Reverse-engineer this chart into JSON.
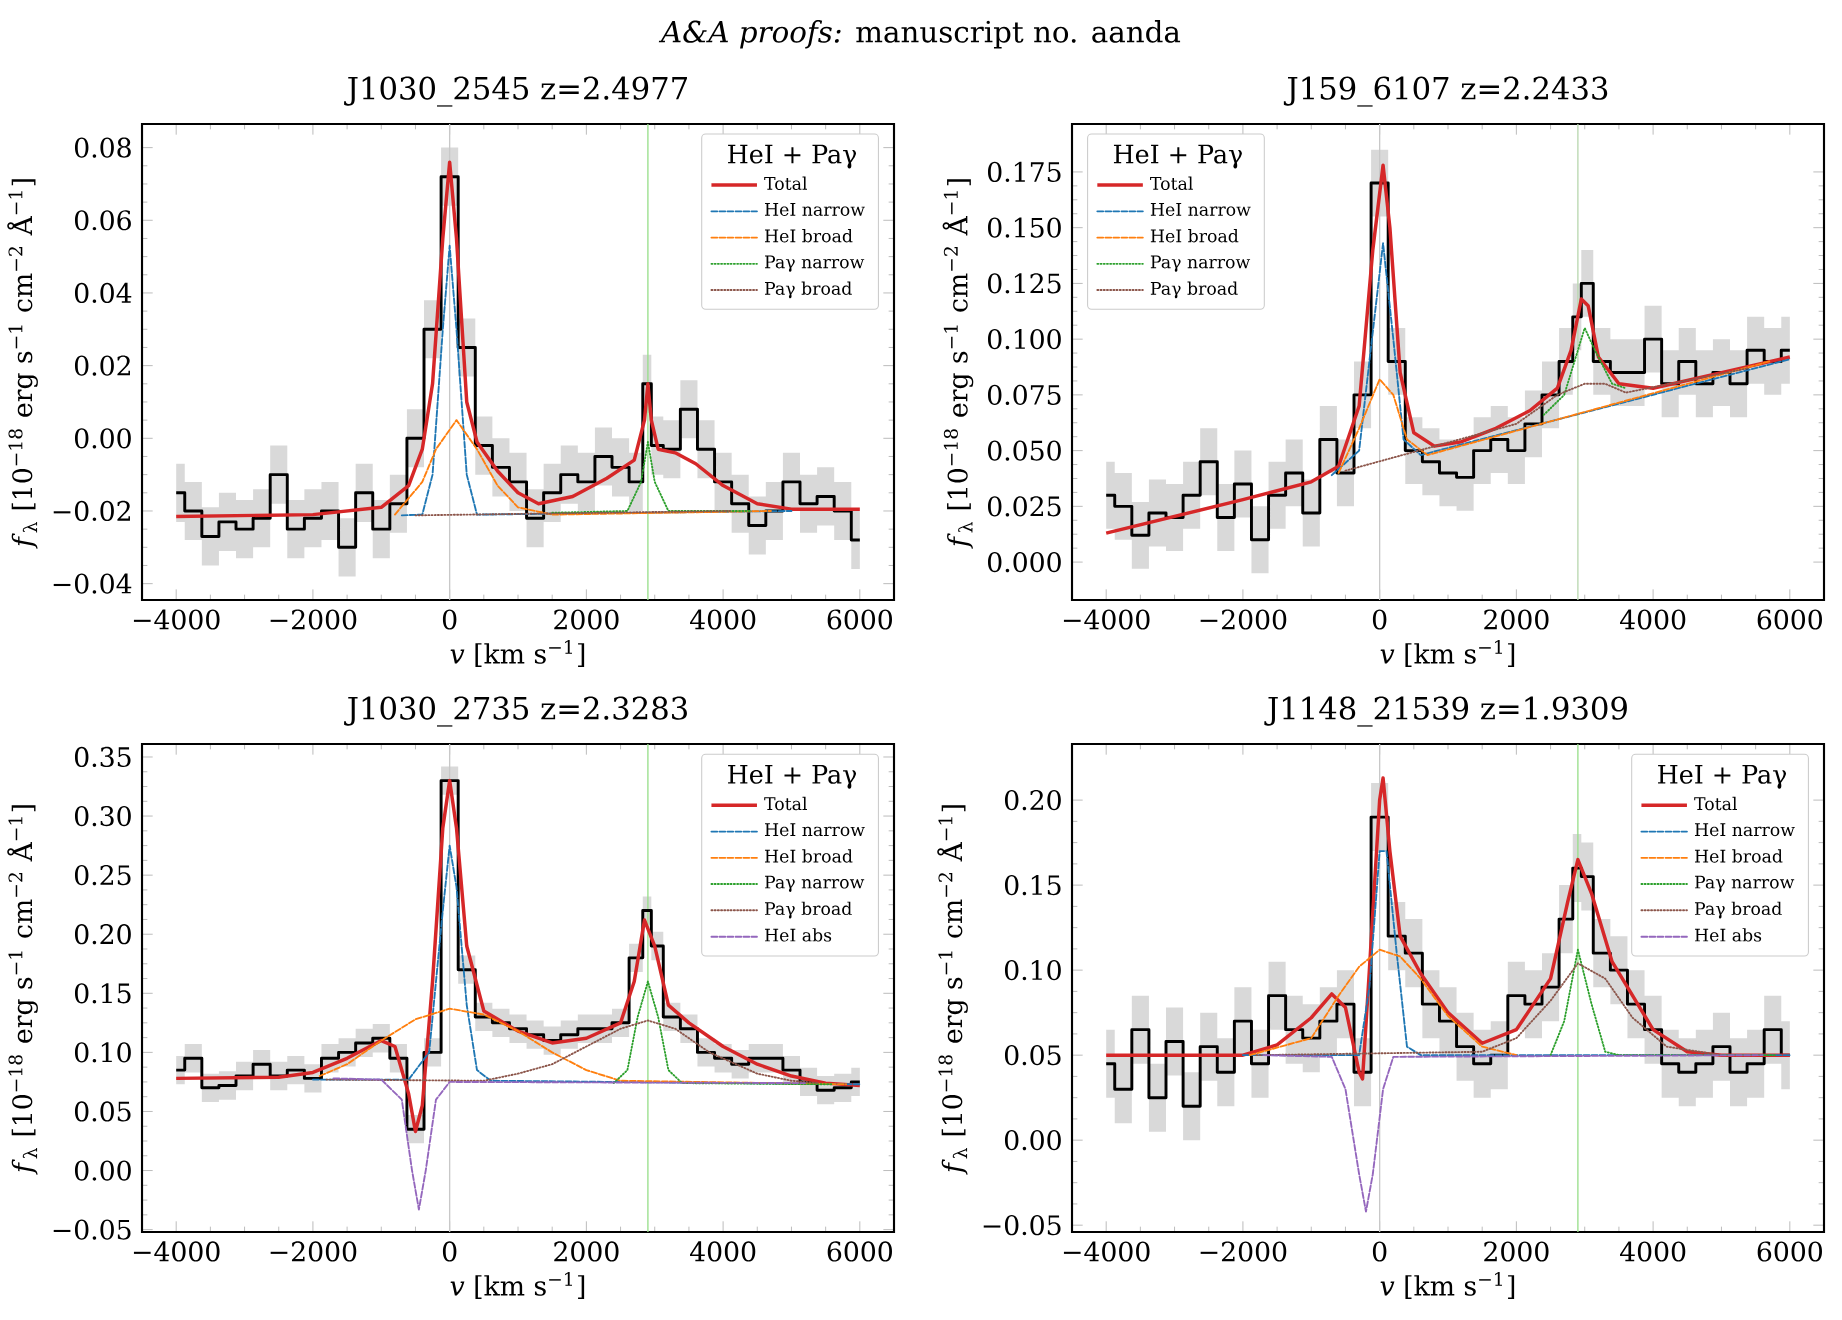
{
  "chart_data": [
    {
      "type": "line",
      "title": "J1030_2545  z=2.4977",
      "xlabel": "*v* [km s$^{−1}$]",
      "ylabel": "*f*$_{λ}$ [10$^{−18}$ erg s$^{−1}$ cm$^{−2}$ Å$^{−1}$]",
      "legend_title": "HeI + Paγ",
      "legend": "top right",
      "annotations": [
        "*A&A proofs:* manuscript no. aanda"
      ],
      "xlim": [
        -4500,
        6500
      ],
      "ylim": [
        -0.0445,
        0.0865
      ],
      "xticks": [
        {
          "value": -4000,
          "label": "−4000"
        },
        {
          "value": -2000,
          "label": "−2000"
        },
        {
          "value": 0,
          "label": "0"
        },
        {
          "value": 2000,
          "label": "2000"
        },
        {
          "value": 4000,
          "label": "4000"
        },
        {
          "value": 6000,
          "label": "6000"
        }
      ],
      "yticks": [
        {
          "value": -0.04,
          "label": "−0.04"
        },
        {
          "value": -0.02,
          "label": "−0.02"
        },
        {
          "value": 0,
          "label": "0.00"
        },
        {
          "value": 0.02,
          "label": "0.02"
        },
        {
          "value": 0.04,
          "label": "0.04"
        },
        {
          "value": 0.06,
          "label": "0.06"
        },
        {
          "value": 0.08,
          "label": "0.08"
        }
      ],
      "ref_lines": [
        {
          "axis": "x",
          "value": 0,
          "color": "#c8c8c8"
        },
        {
          "axis": "x",
          "value": 2900,
          "color": "#98df8a"
        }
      ],
      "series": [
        {
          "type": "step",
          "color": "#000000",
          "x": [
            -4000,
            -3750,
            -3500,
            -3250,
            -3000,
            -2750,
            -2500,
            -2250,
            -2000,
            -1750,
            -1500,
            -1250,
            -1000,
            -750,
            -500,
            -250,
            0,
            250,
            500,
            750,
            1000,
            1250,
            1500,
            1750,
            2000,
            2250,
            2500,
            2750,
            2900,
            3000,
            3250,
            3500,
            3750,
            4000,
            4250,
            4500,
            4750,
            5000,
            5250,
            5500,
            5750,
            6000
          ],
          "values": [
            -0.015,
            -0.02,
            -0.027,
            -0.023,
            -0.025,
            -0.022,
            -0.01,
            -0.025,
            -0.022,
            -0.02,
            -0.03,
            -0.015,
            -0.025,
            -0.018,
            0.0,
            0.03,
            0.072,
            0.025,
            -0.002,
            -0.008,
            -0.012,
            -0.022,
            -0.015,
            -0.01,
            -0.012,
            -0.005,
            -0.008,
            -0.012,
            0.015,
            -0.002,
            -0.003,
            0.008,
            -0.003,
            -0.012,
            -0.018,
            -0.024,
            -0.02,
            -0.012,
            -0.018,
            -0.016,
            -0.02,
            -0.028
          ],
          "lower": [
            -0.023,
            -0.028,
            -0.035,
            -0.031,
            -0.033,
            -0.03,
            -0.018,
            -0.033,
            -0.03,
            -0.028,
            -0.038,
            -0.023,
            -0.033,
            -0.026,
            -0.008,
            0.022,
            0.064,
            0.017,
            -0.01,
            -0.016,
            -0.02,
            -0.03,
            -0.023,
            -0.018,
            -0.02,
            -0.013,
            -0.016,
            -0.02,
            0.007,
            -0.01,
            -0.011,
            0.0,
            -0.011,
            -0.02,
            -0.026,
            -0.032,
            -0.028,
            -0.02,
            -0.026,
            -0.024,
            -0.028,
            -0.036
          ],
          "upper": [
            -0.007,
            -0.012,
            -0.019,
            -0.015,
            -0.017,
            -0.014,
            -0.002,
            -0.017,
            -0.014,
            -0.012,
            -0.022,
            -0.007,
            -0.017,
            -0.01,
            0.008,
            0.038,
            0.08,
            0.033,
            0.006,
            0.0,
            -0.004,
            -0.014,
            -0.007,
            -0.002,
            -0.004,
            0.003,
            0.0,
            -0.004,
            0.023,
            0.006,
            0.005,
            0.016,
            0.005,
            -0.004,
            -0.01,
            -0.016,
            -0.012,
            -0.004,
            -0.01,
            -0.008,
            -0.012,
            -0.02
          ]
        },
        {
          "name": "Total",
          "color": "#d62728",
          "line_style": "solid",
          "x": [
            -4000,
            -2000,
            -1000,
            -600,
            -400,
            -250,
            -100,
            0,
            100,
            250,
            400,
            700,
            1000,
            1300,
            1800,
            2300,
            2700,
            2850,
            2900,
            2950,
            3050,
            3300,
            3600,
            4000,
            4500,
            5000,
            6000
          ],
          "values": [
            -0.0215,
            -0.021,
            -0.019,
            -0.013,
            -0.003,
            0.015,
            0.055,
            0.076,
            0.055,
            0.01,
            -0.001,
            -0.009,
            -0.015,
            -0.018,
            -0.016,
            -0.011,
            -0.006,
            0.005,
            0.015,
            0.005,
            -0.003,
            -0.004,
            -0.007,
            -0.013,
            -0.018,
            -0.0195,
            -0.0195
          ]
        },
        {
          "name": "HeI narrow",
          "color": "#1f77b4",
          "line_style": "dashed",
          "x": [
            -700,
            -400,
            -250,
            -100,
            0,
            100,
            250,
            400,
            5000
          ],
          "values": [
            -0.0212,
            -0.021,
            -0.01,
            0.03,
            0.053,
            0.03,
            -0.01,
            -0.021,
            -0.02
          ]
        },
        {
          "name": "HeI broad",
          "color": "#ff7f0e",
          "line_style": "dashed",
          "x": [
            -800,
            -400,
            -200,
            100,
            400,
            700,
            1000,
            1500,
            4700
          ],
          "values": [
            -0.021,
            -0.012,
            -0.003,
            0.005,
            -0.003,
            -0.013,
            -0.019,
            -0.021,
            -0.02
          ]
        },
        {
          "name": "Paγ narrow",
          "color": "#2ca02c",
          "line_style": "dotted",
          "x": [
            1500,
            2600,
            2800,
            2900,
            3000,
            3200,
            4400
          ],
          "values": [
            -0.0205,
            -0.02,
            -0.012,
            -0.001,
            -0.012,
            -0.02,
            -0.02
          ]
        },
        {
          "name": "Paγ broad",
          "color": "#8c564b",
          "line_style": "dotted",
          "x": [
            -500,
            4100
          ],
          "values": [
            -0.0212,
            -0.02
          ]
        }
      ]
    },
    {
      "type": "line",
      "title": "J159_6107  z=2.2433",
      "xlabel": "*v* [km s$^{−1}$]",
      "ylabel": "*f*$_{λ}$ [10$^{−18}$ erg s$^{−1}$ cm$^{−2}$ Å$^{−1}$]",
      "legend_title": "HeI + Paγ",
      "legend": "top left",
      "xlim": [
        -4500,
        6500
      ],
      "ylim": [
        -0.017,
        0.1965
      ],
      "xticks": [
        {
          "value": -4000,
          "label": "−4000"
        },
        {
          "value": -2000,
          "label": "−2000"
        },
        {
          "value": 0,
          "label": "0"
        },
        {
          "value": 2000,
          "label": "2000"
        },
        {
          "value": 4000,
          "label": "4000"
        },
        {
          "value": 6000,
          "label": "6000"
        }
      ],
      "yticks": [
        {
          "value": 0,
          "label": "0.000"
        },
        {
          "value": 0.025,
          "label": "0.025"
        },
        {
          "value": 0.05,
          "label": "0.050"
        },
        {
          "value": 0.075,
          "label": "0.075"
        },
        {
          "value": 0.1,
          "label": "0.100"
        },
        {
          "value": 0.125,
          "label": "0.125"
        },
        {
          "value": 0.15,
          "label": "0.150"
        },
        {
          "value": 0.175,
          "label": "0.175"
        }
      ],
      "ref_lines": [
        {
          "axis": "x",
          "value": 0,
          "color": "#c8c8c8"
        },
        {
          "axis": "x",
          "value": 2900,
          "color": "#b8d8b0"
        }
      ],
      "series": [
        {
          "type": "step",
          "color": "#000000",
          "x": [
            -4000,
            -3750,
            -3500,
            -3250,
            -3000,
            -2750,
            -2500,
            -2250,
            -2000,
            -1750,
            -1500,
            -1250,
            -1000,
            -750,
            -500,
            -250,
            0,
            250,
            500,
            750,
            1000,
            1250,
            1500,
            1750,
            2000,
            2250,
            2500,
            2750,
            2900,
            3000,
            3250,
            3500,
            3750,
            4000,
            4250,
            4500,
            4750,
            5000,
            5250,
            5500,
            5750,
            6000
          ],
          "values": [
            0.03,
            0.025,
            0.012,
            0.022,
            0.02,
            0.03,
            0.045,
            0.02,
            0.035,
            0.01,
            0.03,
            0.04,
            0.022,
            0.055,
            0.04,
            0.075,
            0.17,
            0.09,
            0.05,
            0.045,
            0.04,
            0.038,
            0.05,
            0.055,
            0.05,
            0.062,
            0.075,
            0.09,
            0.11,
            0.125,
            0.09,
            0.085,
            0.085,
            0.1,
            0.08,
            0.09,
            0.08,
            0.085,
            0.08,
            0.095,
            0.09,
            0.095
          ],
          "lower": [
            0.015,
            0.01,
            -0.003,
            0.007,
            0.005,
            0.015,
            0.03,
            0.005,
            0.02,
            -0.005,
            0.015,
            0.025,
            0.007,
            0.04,
            0.025,
            0.06,
            0.155,
            0.075,
            0.035,
            0.03,
            0.025,
            0.023,
            0.035,
            0.04,
            0.035,
            0.047,
            0.06,
            0.075,
            0.095,
            0.11,
            0.075,
            0.07,
            0.07,
            0.085,
            0.065,
            0.075,
            0.065,
            0.07,
            0.065,
            0.08,
            0.075,
            0.08
          ],
          "upper": [
            0.045,
            0.04,
            0.027,
            0.037,
            0.035,
            0.045,
            0.06,
            0.035,
            0.05,
            0.025,
            0.045,
            0.055,
            0.037,
            0.07,
            0.055,
            0.09,
            0.185,
            0.105,
            0.065,
            0.06,
            0.055,
            0.053,
            0.065,
            0.07,
            0.065,
            0.077,
            0.09,
            0.105,
            0.125,
            0.14,
            0.105,
            0.1,
            0.1,
            0.115,
            0.095,
            0.105,
            0.095,
            0.1,
            0.095,
            0.11,
            0.105,
            0.11
          ]
        },
        {
          "name": "Total",
          "color": "#d62728",
          "line_style": "solid",
          "x": [
            -4000,
            -2000,
            -1000,
            -600,
            -300,
            -100,
            50,
            150,
            300,
            500,
            800,
            1200,
            1700,
            2200,
            2600,
            2800,
            2950,
            3050,
            3200,
            3500,
            4000,
            5000,
            6000
          ],
          "values": [
            0.013,
            0.028,
            0.036,
            0.043,
            0.07,
            0.14,
            0.178,
            0.15,
            0.085,
            0.058,
            0.052,
            0.054,
            0.06,
            0.068,
            0.078,
            0.095,
            0.118,
            0.115,
            0.092,
            0.08,
            0.078,
            0.085,
            0.092
          ]
        },
        {
          "name": "HeI narrow",
          "color": "#1f77b4",
          "line_style": "dashed",
          "x": [
            -700,
            -300,
            -150,
            50,
            200,
            350,
            600,
            6000
          ],
          "values": [
            0.039,
            0.05,
            0.09,
            0.143,
            0.1,
            0.055,
            0.048,
            0.091
          ]
        },
        {
          "name": "HeI broad",
          "color": "#ff7f0e",
          "line_style": "dashed",
          "x": [
            -600,
            -300,
            0,
            200,
            400,
            700,
            5700
          ],
          "values": [
            0.04,
            0.06,
            0.082,
            0.075,
            0.055,
            0.048,
            0.09
          ]
        },
        {
          "name": "Paγ narrow",
          "color": "#2ca02c",
          "line_style": "dotted",
          "x": [
            2400,
            2700,
            2900,
            3000,
            3150,
            3400,
            3600
          ],
          "values": [
            0.066,
            0.075,
            0.095,
            0.105,
            0.095,
            0.08,
            0.078
          ]
        },
        {
          "name": "Paγ broad",
          "color": "#8c564b",
          "line_style": "dotted",
          "x": [
            -500,
            2000,
            2600,
            3000,
            3300,
            3600,
            5400
          ],
          "values": [
            0.041,
            0.062,
            0.075,
            0.08,
            0.08,
            0.076,
            0.087
          ]
        }
      ]
    },
    {
      "type": "line",
      "title": "J1030_2735  z=2.3283",
      "xlabel": "*v* [km s$^{−1}$]",
      "ylabel": "*f*$_{λ}$ [10$^{−18}$ erg s$^{−1}$ cm$^{−2}$ Å$^{−1}$]",
      "legend_title": "HeI + Paγ",
      "legend": "top right",
      "xlim": [
        -4500,
        6500
      ],
      "ylim": [
        -0.052,
        0.361
      ],
      "xticks": [
        {
          "value": -4000,
          "label": "−4000"
        },
        {
          "value": -2000,
          "label": "−2000"
        },
        {
          "value": 0,
          "label": "0"
        },
        {
          "value": 2000,
          "label": "2000"
        },
        {
          "value": 4000,
          "label": "4000"
        },
        {
          "value": 6000,
          "label": "6000"
        }
      ],
      "yticks": [
        {
          "value": -0.05,
          "label": "−0.05"
        },
        {
          "value": 0,
          "label": "0.00"
        },
        {
          "value": 0.05,
          "label": "0.05"
        },
        {
          "value": 0.1,
          "label": "0.10"
        },
        {
          "value": 0.15,
          "label": "0.15"
        },
        {
          "value": 0.2,
          "label": "0.20"
        },
        {
          "value": 0.25,
          "label": "0.25"
        },
        {
          "value": 0.3,
          "label": "0.30"
        },
        {
          "value": 0.35,
          "label": "0.35"
        }
      ],
      "ref_lines": [
        {
          "axis": "x",
          "value": 0,
          "color": "#c8c8c8"
        },
        {
          "axis": "x",
          "value": 2900,
          "color": "#98df8a"
        }
      ],
      "series": [
        {
          "type": "step",
          "color": "#000000",
          "x": [
            -4000,
            -3750,
            -3500,
            -3250,
            -3000,
            -2750,
            -2500,
            -2250,
            -2000,
            -1750,
            -1500,
            -1250,
            -1000,
            -750,
            -500,
            -250,
            0,
            250,
            500,
            750,
            1000,
            1250,
            1500,
            1750,
            2000,
            2250,
            2500,
            2750,
            2900,
            3000,
            3250,
            3500,
            3750,
            4000,
            4250,
            4500,
            4750,
            5000,
            5250,
            5500,
            5750,
            6000
          ],
          "values": [
            0.085,
            0.095,
            0.07,
            0.072,
            0.08,
            0.09,
            0.08,
            0.085,
            0.078,
            0.095,
            0.1,
            0.108,
            0.112,
            0.095,
            0.035,
            0.1,
            0.33,
            0.17,
            0.13,
            0.125,
            0.12,
            0.115,
            0.11,
            0.115,
            0.12,
            0.12,
            0.125,
            0.18,
            0.22,
            0.19,
            0.13,
            0.12,
            0.1,
            0.095,
            0.09,
            0.095,
            0.095,
            0.085,
            0.075,
            0.068,
            0.07,
            0.075
          ],
          "lower": [
            0.073,
            0.083,
            0.058,
            0.06,
            0.068,
            0.078,
            0.068,
            0.073,
            0.066,
            0.083,
            0.088,
            0.096,
            0.1,
            0.083,
            0.023,
            0.088,
            0.318,
            0.158,
            0.118,
            0.113,
            0.108,
            0.103,
            0.098,
            0.103,
            0.108,
            0.108,
            0.113,
            0.168,
            0.208,
            0.178,
            0.118,
            0.108,
            0.088,
            0.083,
            0.078,
            0.083,
            0.083,
            0.073,
            0.063,
            0.056,
            0.058,
            0.063
          ],
          "upper": [
            0.097,
            0.107,
            0.082,
            0.084,
            0.092,
            0.102,
            0.092,
            0.097,
            0.09,
            0.107,
            0.112,
            0.12,
            0.124,
            0.107,
            0.047,
            0.112,
            0.342,
            0.182,
            0.142,
            0.137,
            0.132,
            0.127,
            0.122,
            0.127,
            0.132,
            0.132,
            0.137,
            0.192,
            0.232,
            0.202,
            0.142,
            0.132,
            0.112,
            0.107,
            0.102,
            0.107,
            0.107,
            0.097,
            0.087,
            0.08,
            0.082,
            0.087
          ]
        },
        {
          "name": "Total",
          "color": "#d62728",
          "line_style": "solid",
          "x": [
            -4000,
            -2500,
            -2000,
            -1500,
            -1000,
            -800,
            -600,
            -500,
            -400,
            -250,
            -100,
            0,
            100,
            250,
            500,
            1000,
            1500,
            2000,
            2500,
            2700,
            2850,
            3000,
            3200,
            3500,
            4000,
            4500,
            5000,
            5500,
            6000
          ],
          "values": [
            0.078,
            0.079,
            0.083,
            0.095,
            0.11,
            0.105,
            0.065,
            0.033,
            0.055,
            0.16,
            0.29,
            0.33,
            0.29,
            0.19,
            0.135,
            0.118,
            0.108,
            0.112,
            0.125,
            0.16,
            0.212,
            0.19,
            0.14,
            0.125,
            0.105,
            0.09,
            0.08,
            0.074,
            0.072
          ]
        },
        {
          "name": "HeI narrow",
          "color": "#1f77b4",
          "line_style": "dashed",
          "x": [
            -2000,
            -600,
            -300,
            -100,
            0,
            100,
            250,
            400,
            600,
            6000
          ],
          "values": [
            0.077,
            0.077,
            0.1,
            0.22,
            0.275,
            0.24,
            0.14,
            0.085,
            0.076,
            0.073
          ]
        },
        {
          "name": "HeI broad",
          "color": "#ff7f0e",
          "line_style": "dashed",
          "x": [
            -1900,
            -1500,
            -1000,
            -500,
            0,
            500,
            1000,
            1500,
            2000,
            2500,
            5800
          ],
          "values": [
            0.08,
            0.09,
            0.11,
            0.128,
            0.137,
            0.132,
            0.118,
            0.1,
            0.085,
            0.076,
            0.073
          ]
        },
        {
          "name": "Paγ narrow",
          "color": "#2ca02c",
          "line_style": "dotted",
          "x": [
            2400,
            2600,
            2750,
            2900,
            3050,
            3200,
            3400,
            5600
          ],
          "values": [
            0.074,
            0.085,
            0.13,
            0.16,
            0.13,
            0.085,
            0.074,
            0.073
          ]
        },
        {
          "name": "Paγ broad",
          "color": "#8c564b",
          "line_style": "dotted",
          "x": [
            -1800,
            500,
            1000,
            1500,
            2000,
            2500,
            2900,
            3300,
            3800,
            4500,
            5000,
            5400
          ],
          "values": [
            0.077,
            0.076,
            0.082,
            0.09,
            0.105,
            0.12,
            0.127,
            0.12,
            0.1,
            0.082,
            0.076,
            0.074
          ]
        },
        {
          "name": "HeI abs",
          "color": "#9467bd",
          "line_style": "dashed",
          "x": [
            -1700,
            -1000,
            -700,
            -550,
            -450,
            -350,
            -200,
            0,
            5200
          ],
          "values": [
            0.078,
            0.077,
            0.06,
            0.0,
            -0.033,
            0.0,
            0.06,
            0.075,
            0.074
          ]
        }
      ]
    },
    {
      "type": "line",
      "title": "J1148_21539  z=1.9309",
      "xlabel": "*v* [km s$^{−1}$]",
      "ylabel": "*f*$_{λ}$ [10$^{−18}$ erg s$^{−1}$ cm$^{−2}$ Å$^{−1}$]",
      "legend_title": "HeI + Paγ",
      "legend": "top right",
      "xlim": [
        -4500,
        6500
      ],
      "ylim": [
        -0.054,
        0.233
      ],
      "xticks": [
        {
          "value": -4000,
          "label": "−4000"
        },
        {
          "value": -2000,
          "label": "−2000"
        },
        {
          "value": 0,
          "label": "0"
        },
        {
          "value": 2000,
          "label": "2000"
        },
        {
          "value": 4000,
          "label": "4000"
        },
        {
          "value": 6000,
          "label": "6000"
        }
      ],
      "yticks": [
        {
          "value": -0.05,
          "label": "−0.05"
        },
        {
          "value": 0,
          "label": "0.00"
        },
        {
          "value": 0.05,
          "label": "0.05"
        },
        {
          "value": 0.1,
          "label": "0.10"
        },
        {
          "value": 0.15,
          "label": "0.15"
        },
        {
          "value": 0.2,
          "label": "0.20"
        }
      ],
      "ref_lines": [
        {
          "axis": "x",
          "value": 0,
          "color": "#c8c8c8"
        },
        {
          "axis": "x",
          "value": 2900,
          "color": "#98df8a"
        }
      ],
      "series": [
        {
          "type": "step",
          "color": "#000000",
          "x": [
            -4000,
            -3750,
            -3500,
            -3250,
            -3000,
            -2750,
            -2500,
            -2250,
            -2000,
            -1750,
            -1500,
            -1250,
            -1000,
            -750,
            -500,
            -250,
            0,
            250,
            500,
            750,
            1000,
            1250,
            1500,
            1750,
            2000,
            2250,
            2500,
            2750,
            2900,
            3000,
            3250,
            3500,
            3750,
            4000,
            4250,
            4500,
            4750,
            5000,
            5250,
            5500,
            5750,
            6000
          ],
          "values": [
            0.045,
            0.03,
            0.065,
            0.025,
            0.058,
            0.02,
            0.055,
            0.04,
            0.07,
            0.045,
            0.085,
            0.065,
            0.06,
            0.07,
            0.08,
            0.04,
            0.19,
            0.12,
            0.11,
            0.08,
            0.07,
            0.055,
            0.045,
            0.05,
            0.085,
            0.08,
            0.09,
            0.13,
            0.16,
            0.155,
            0.11,
            0.1,
            0.08,
            0.065,
            0.045,
            0.04,
            0.045,
            0.055,
            0.04,
            0.045,
            0.065,
            0.05
          ],
          "lower": [
            0.025,
            0.01,
            0.045,
            0.005,
            0.038,
            0.0,
            0.035,
            0.02,
            0.05,
            0.025,
            0.065,
            0.045,
            0.04,
            0.05,
            0.06,
            0.02,
            0.17,
            0.1,
            0.09,
            0.06,
            0.05,
            0.035,
            0.025,
            0.03,
            0.065,
            0.06,
            0.07,
            0.11,
            0.14,
            0.135,
            0.09,
            0.08,
            0.06,
            0.045,
            0.025,
            0.02,
            0.025,
            0.035,
            0.02,
            0.025,
            0.045,
            0.03
          ],
          "upper": [
            0.065,
            0.05,
            0.085,
            0.045,
            0.078,
            0.04,
            0.075,
            0.06,
            0.09,
            0.065,
            0.105,
            0.085,
            0.08,
            0.09,
            0.1,
            0.06,
            0.21,
            0.14,
            0.13,
            0.1,
            0.09,
            0.075,
            0.065,
            0.07,
            0.105,
            0.1,
            0.11,
            0.15,
            0.18,
            0.175,
            0.13,
            0.12,
            0.1,
            0.085,
            0.065,
            0.06,
            0.065,
            0.075,
            0.06,
            0.065,
            0.085,
            0.07
          ]
        },
        {
          "name": "Total",
          "color": "#d62728",
          "line_style": "solid",
          "x": [
            -4000,
            -2000,
            -1500,
            -1000,
            -700,
            -500,
            -300,
            -250,
            -150,
            0,
            50,
            150,
            300,
            600,
            1000,
            1500,
            2000,
            2500,
            2750,
            2900,
            3100,
            3400,
            4000,
            4500,
            5000,
            6000
          ],
          "values": [
            0.05,
            0.05,
            0.056,
            0.072,
            0.086,
            0.078,
            0.04,
            0.036,
            0.1,
            0.2,
            0.213,
            0.17,
            0.12,
            0.098,
            0.075,
            0.057,
            0.065,
            0.095,
            0.14,
            0.165,
            0.145,
            0.105,
            0.065,
            0.052,
            0.05,
            0.05
          ]
        },
        {
          "name": "HeI narrow",
          "color": "#1f77b4",
          "line_style": "dashed",
          "x": [
            -2000,
            -300,
            -150,
            0,
            100,
            250,
            400,
            600,
            6000
          ],
          "values": [
            0.05,
            0.05,
            0.09,
            0.17,
            0.17,
            0.11,
            0.055,
            0.05,
            0.05
          ]
        },
        {
          "name": "HeI broad",
          "color": "#ff7f0e",
          "line_style": "dashed",
          "x": [
            -1900,
            -1000,
            -600,
            -300,
            0,
            300,
            600,
            1000,
            1500,
            2000
          ],
          "values": [
            0.05,
            0.06,
            0.085,
            0.102,
            0.112,
            0.108,
            0.095,
            0.073,
            0.055,
            0.05
          ]
        },
        {
          "name": "Paγ narrow",
          "color": "#2ca02c",
          "line_style": "dotted",
          "x": [
            2500,
            2700,
            2900,
            3100,
            3300,
            3500,
            5800
          ],
          "values": [
            0.05,
            0.07,
            0.112,
            0.08,
            0.052,
            0.05,
            0.05
          ]
        },
        {
          "name": "Paγ broad",
          "color": "#8c564b",
          "line_style": "dotted",
          "x": [
            -1800,
            1500,
            2000,
            2500,
            2900,
            3300,
            3700,
            4200,
            5000
          ],
          "values": [
            0.05,
            0.052,
            0.06,
            0.082,
            0.104,
            0.095,
            0.072,
            0.055,
            0.05
          ]
        },
        {
          "name": "HeI abs",
          "color": "#9467bd",
          "line_style": "dashed",
          "x": [
            -1700,
            -700,
            -500,
            -300,
            -200,
            -100,
            50,
            200,
            5600
          ],
          "values": [
            0.05,
            0.049,
            0.03,
            -0.02,
            -0.042,
            -0.02,
            0.03,
            0.049,
            0.05
          ]
        }
      ]
    }
  ]
}
